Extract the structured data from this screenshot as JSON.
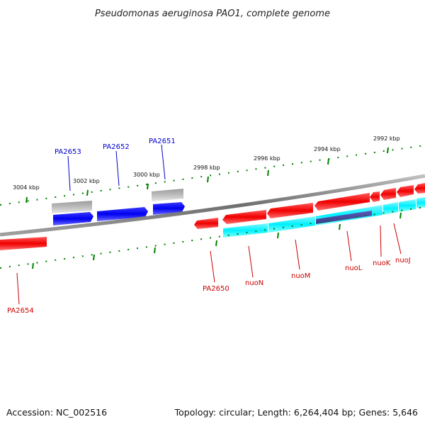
{
  "title": "Pseudomonas aeruginosa PAO1, complete genome",
  "footer": {
    "accession": "Accession: NC_002516",
    "topology": "Topology: circular; Length: 6,264,404 bp; Genes: 5,646"
  },
  "colors": {
    "backbone": "#808080",
    "forward_gene": "#0000ff",
    "reverse_gene": "#ff0000",
    "cds_track": "#00ffff",
    "other_feature": "#b4b4b4",
    "overlap_feature": "#4040a0",
    "tick": "#008000",
    "label_forward": "#0000cc",
    "label_reverse": "#cc0000"
  },
  "scale_labels": [
    "3004 kbp",
    "3002 kbp",
    "3000 kbp",
    "2998 kbp",
    "2996 kbp",
    "2994 kbp",
    "2992 kbp"
  ],
  "gene_labels": {
    "forward": [
      "PA2653",
      "PA2652",
      "PA2651"
    ],
    "reverse": [
      "PA2654",
      "PA2650",
      "nuoN",
      "nuoM",
      "nuoL",
      "nuoK",
      "nuoJ"
    ]
  }
}
